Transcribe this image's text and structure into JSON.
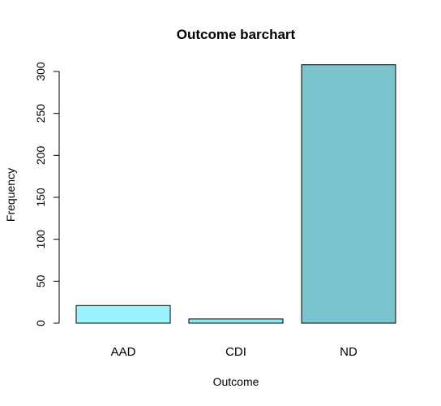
{
  "chart_data": {
    "type": "bar",
    "title": "Outcome barchart",
    "xlabel": "Outcome",
    "ylabel": "Frequency",
    "categories": [
      "AAD",
      "CDI",
      "ND"
    ],
    "values": [
      21,
      5,
      308
    ],
    "colors": [
      "#98f5ff",
      "#8ee5ee",
      "#7ac5cd"
    ],
    "ylim": [
      0,
      300
    ],
    "yticks": [
      0,
      50,
      100,
      150,
      200,
      250,
      300
    ],
    "grid": false,
    "legend": "none"
  }
}
